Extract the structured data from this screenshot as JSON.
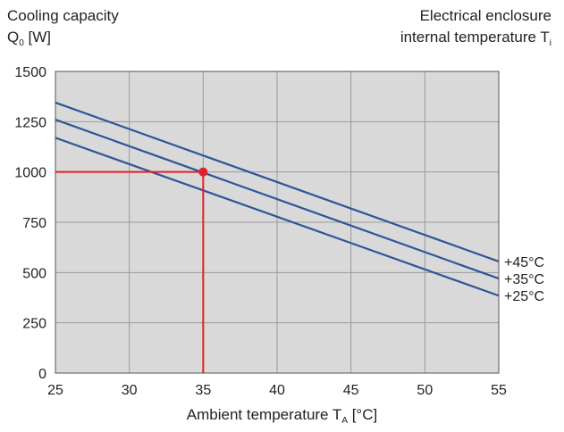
{
  "chart_data": {
    "type": "line",
    "ytitle_line1": "Cooling capacity",
    "ytitle_line2_main": "Q",
    "ytitle_line2_sub": "0",
    "ytitle_line2_unit": " [W]",
    "rtitle_line1": "Electrical enclosure",
    "rtitle_line2_main": "internal temperature T",
    "rtitle_line2_sub": "i",
    "xlabel_main": "Ambient temperature T",
    "xlabel_sub": "A",
    "xlabel_unit": " [°C]",
    "xlim": [
      25,
      55
    ],
    "ylim": [
      0,
      1500
    ],
    "xticks": [
      "25",
      "30",
      "35",
      "40",
      "45",
      "50",
      "55"
    ],
    "yticks": [
      "0",
      "250",
      "500",
      "750",
      "1000",
      "1250",
      "1500"
    ],
    "grid": true,
    "series": [
      {
        "name": "+45°C",
        "x": [
          25,
          55
        ],
        "y": [
          1345,
          555
        ]
      },
      {
        "name": "+35°C",
        "x": [
          25,
          55
        ],
        "y": [
          1260,
          470
        ]
      },
      {
        "name": "+25°C",
        "x": [
          25,
          55
        ],
        "y": [
          1170,
          385
        ]
      }
    ],
    "annotation": {
      "x": 35,
      "y": 1000
    },
    "colors": {
      "series": "#2f5597",
      "annotation": "#e0202a",
      "plot_bg": "#d9d9d9",
      "grid": "#9a9a9a"
    }
  }
}
